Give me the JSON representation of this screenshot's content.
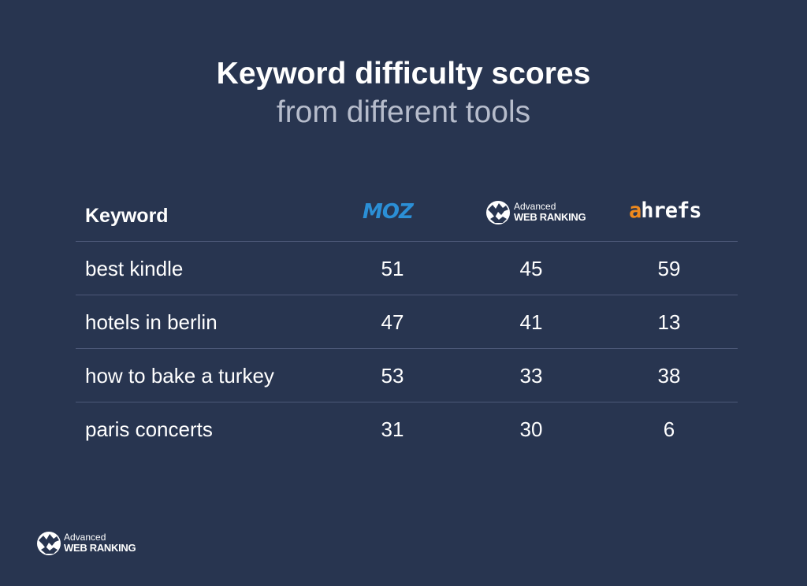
{
  "header": {
    "title": "Keyword difficulty scores",
    "subtitle": "from different tools"
  },
  "table": {
    "keyword_header": "Keyword",
    "tools": {
      "moz": "MOZ",
      "awr_small": "Advanced",
      "awr_big": "WEB RANKING",
      "ahrefs_a": "a",
      "ahrefs_rest": "hrefs"
    },
    "rows": [
      {
        "keyword": "best kindle",
        "moz": "51",
        "awr": "45",
        "ahrefs": "59"
      },
      {
        "keyword": "hotels in berlin",
        "moz": "47",
        "awr": "41",
        "ahrefs": "13"
      },
      {
        "keyword": "how to bake a turkey",
        "moz": "53",
        "awr": "33",
        "ahrefs": "38"
      },
      {
        "keyword": "paris concerts",
        "moz": "31",
        "awr": "30",
        "ahrefs": "6"
      }
    ]
  },
  "footer": {
    "logo_small": "Advanced",
    "logo_big": "WEB RANKING"
  },
  "colors": {
    "background": "#283550",
    "subtitle": "#b6bccb",
    "divider": "#4c5877",
    "moz_blue": "#2b8fd6",
    "ahrefs_orange": "#f08a1d"
  },
  "chart_data": {
    "type": "table",
    "title": "Keyword difficulty scores",
    "subtitle": "from different tools",
    "columns": [
      "Keyword",
      "MOZ",
      "Advanced Web Ranking",
      "ahrefs"
    ],
    "categories": [
      "best kindle",
      "hotels in berlin",
      "how to bake a turkey",
      "paris concerts"
    ],
    "series": [
      {
        "name": "MOZ",
        "values": [
          51,
          47,
          53,
          31
        ]
      },
      {
        "name": "Advanced Web Ranking",
        "values": [
          45,
          41,
          33,
          30
        ]
      },
      {
        "name": "ahrefs",
        "values": [
          59,
          13,
          38,
          6
        ]
      }
    ]
  }
}
